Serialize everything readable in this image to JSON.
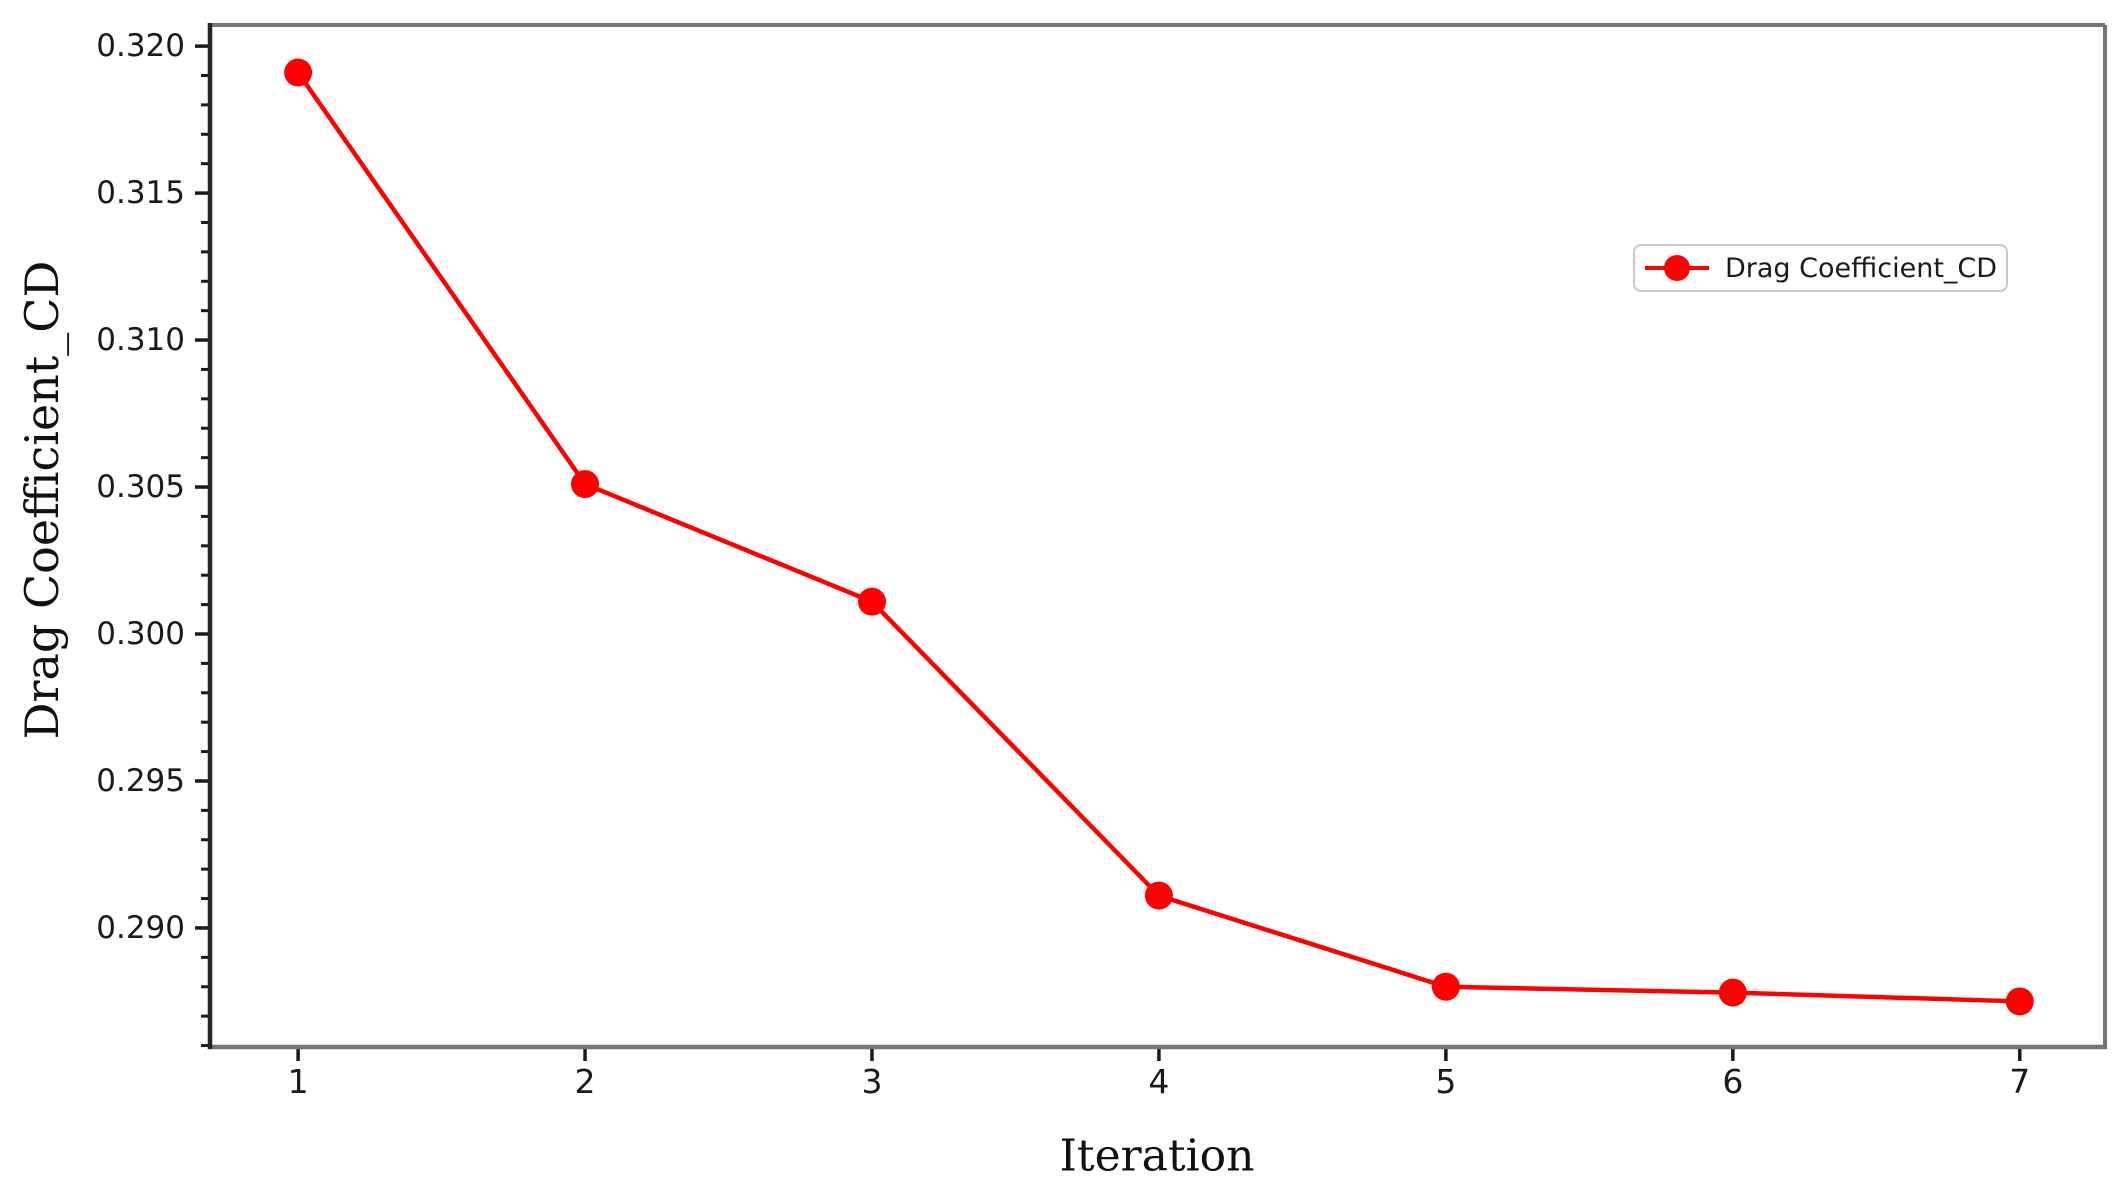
{
  "chart_data": {
    "type": "line",
    "title": "",
    "xlabel": "Iteration",
    "ylabel": "Drag Coefficient_CD",
    "x": [
      1,
      2,
      3,
      4,
      5,
      6,
      7
    ],
    "series": [
      {
        "name": "Drag Coefficient_CD",
        "color": "#ff0000",
        "values": [
          0.3191,
          0.3051,
          0.3011,
          0.2911,
          0.288,
          0.2878,
          0.2875
        ]
      }
    ],
    "x_ticks": [
      1,
      2,
      3,
      4,
      5,
      6,
      7
    ],
    "x_tick_labels": [
      "1",
      "2",
      "3",
      "4",
      "5",
      "6",
      "7"
    ],
    "y_major_ticks": [
      0.29,
      0.295,
      0.3,
      0.305,
      0.31,
      0.315,
      0.32
    ],
    "y_tick_labels": [
      "0.290",
      "0.295",
      "0.300",
      "0.305",
      "0.310",
      "0.315",
      "0.320"
    ],
    "y_minor_tick_step": 0.001,
    "xlim": [
      0.693,
      7.297
    ],
    "ylim": [
      0.28595,
      0.32065
    ],
    "grid": false,
    "legend": {
      "label": "Drag Coefficient_CD",
      "position": "upper-right-inside"
    },
    "line_style": {
      "marker": "circle",
      "marker_size": 14,
      "line_width": 4.5
    }
  },
  "colors": {
    "series_red": "#ff0000",
    "spine_left": "#262626",
    "spine_other": "#757575",
    "tick": "#1a1a1a",
    "text": "#1a1a1a",
    "legend_border": "#c8c8c8",
    "background": "#ffffff"
  }
}
